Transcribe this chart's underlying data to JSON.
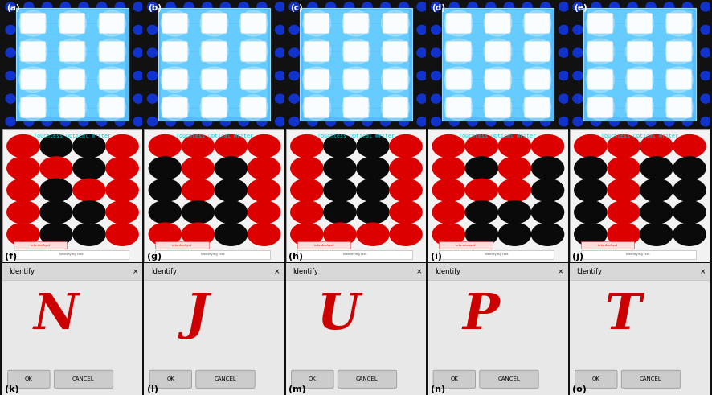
{
  "letters": [
    "N",
    "J",
    "U",
    "P",
    "T"
  ],
  "panel_labels_top": [
    "(a)",
    "(b)",
    "(c)",
    "(d)",
    "(e)"
  ],
  "panel_labels_mid": [
    "(f)",
    "(g)",
    "(h)",
    "(i)",
    "(j)"
  ],
  "panel_labels_bot": [
    "(k)",
    "(l)",
    "(m)",
    "(n)",
    "(o)"
  ],
  "title_text": "Touchless Optical Writer",
  "identify_text": "Identify",
  "ok_text": "OK",
  "cancel_text": "CANCEL",
  "dot_patterns": [
    [
      [
        1,
        0,
        0,
        1
      ],
      [
        1,
        1,
        0,
        1
      ],
      [
        1,
        0,
        1,
        1
      ],
      [
        1,
        0,
        0,
        1
      ],
      [
        1,
        0,
        0,
        1
      ]
    ],
    [
      [
        1,
        1,
        1,
        1
      ],
      [
        0,
        1,
        0,
        1
      ],
      [
        0,
        1,
        0,
        1
      ],
      [
        0,
        0,
        0,
        1
      ],
      [
        1,
        1,
        0,
        1
      ]
    ],
    [
      [
        1,
        0,
        0,
        1
      ],
      [
        1,
        0,
        0,
        1
      ],
      [
        1,
        0,
        0,
        1
      ],
      [
        1,
        0,
        0,
        1
      ],
      [
        1,
        1,
        1,
        1
      ]
    ],
    [
      [
        1,
        1,
        1,
        1
      ],
      [
        1,
        0,
        1,
        0
      ],
      [
        1,
        1,
        1,
        0
      ],
      [
        1,
        0,
        0,
        0
      ],
      [
        1,
        0,
        0,
        0
      ]
    ],
    [
      [
        1,
        1,
        1,
        1
      ],
      [
        0,
        1,
        0,
        0
      ],
      [
        0,
        1,
        0,
        0
      ],
      [
        0,
        1,
        0,
        0
      ],
      [
        0,
        1,
        0,
        0
      ]
    ]
  ],
  "red": "#dd0000",
  "black": "#0a0a0a",
  "bg_ui": "#f2f2f2",
  "bg_dialog": "#e0e0e0",
  "title_color": "#00ccdd",
  "letter_color": "#cc0000",
  "photo_bg": "#0000cc",
  "photo_board": "#44aaff",
  "photo_border_dark": "#000088"
}
